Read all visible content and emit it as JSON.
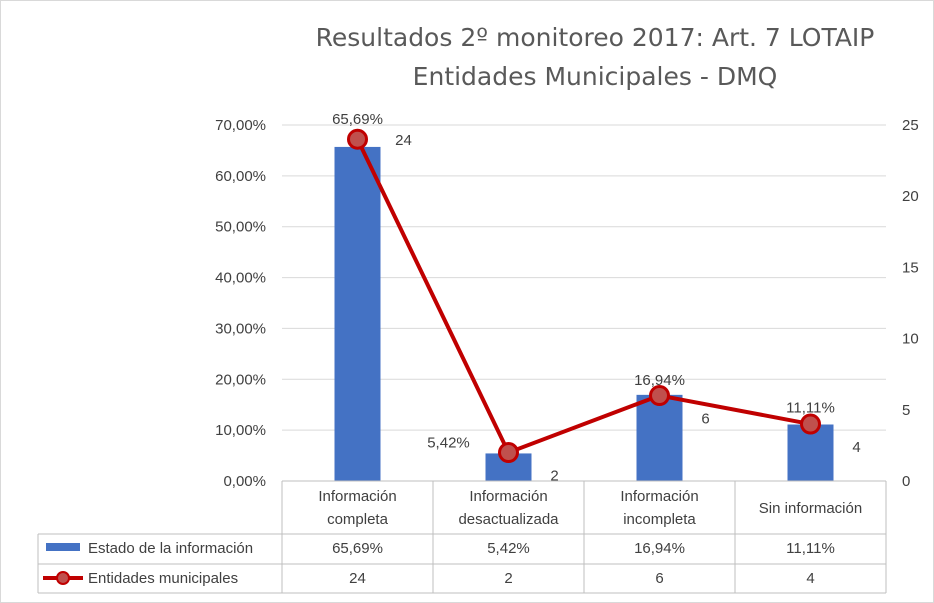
{
  "chart_data": {
    "type": "bar",
    "title": "Resultados 2º monitoreo 2017: Art. 7 LOTAIP",
    "subtitle": "Entidades Municipales - DMQ",
    "categories": [
      [
        "Información",
        "completa"
      ],
      [
        "Información",
        "desactualizada"
      ],
      [
        "Información",
        "incompleta"
      ],
      [
        "Sin información"
      ]
    ],
    "series": [
      {
        "name": "Estado de la información",
        "kind": "bar",
        "axis": "left",
        "values": [
          65.69,
          5.42,
          16.94,
          11.11
        ],
        "labels": [
          "65,69%",
          "5,42%",
          "16,94%",
          "11,11%"
        ],
        "color": "#4472c4"
      },
      {
        "name": "Entidades municipales",
        "kind": "line",
        "axis": "right",
        "values": [
          24,
          2,
          6,
          4
        ],
        "labels": [
          "24",
          "2",
          "6",
          "4"
        ],
        "color": "#c00000",
        "marker_fill": "#c0504d"
      }
    ],
    "y_left": {
      "ylim": [
        0,
        70
      ],
      "ticks": [
        0,
        10,
        20,
        30,
        40,
        50,
        60,
        70
      ],
      "tick_labels": [
        "0,00%",
        "10,00%",
        "20,00%",
        "30,00%",
        "40,00%",
        "50,00%",
        "60,00%",
        "70,00%"
      ]
    },
    "y_right": {
      "ylim": [
        0,
        25
      ],
      "ticks": [
        0,
        5,
        10,
        15,
        20,
        25
      ],
      "tick_labels": [
        "0",
        "5",
        "10",
        "15",
        "20",
        "25"
      ]
    },
    "grid": true,
    "legend": "data-table",
    "data_table": true
  }
}
